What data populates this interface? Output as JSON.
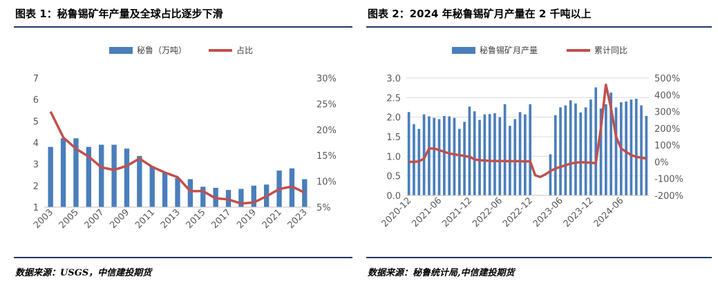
{
  "colors": {
    "bar": "#4a7ebb",
    "line": "#c0504d",
    "rule": "#1f3864",
    "axis_text": "#595959",
    "grid": "#d9d9d9"
  },
  "left": {
    "title": "图表 1：秘鲁锡矿年产量及全球占比逐步下滑",
    "source": "数据来源：USGS，中信建投期货",
    "chart_data": {
      "type": "bar+line",
      "legend_position": "top",
      "series": [
        {
          "name": "秘鲁（万吨）",
          "kind": "bar",
          "axis": "left",
          "values": [
            3.8,
            4.2,
            4.2,
            3.8,
            3.9,
            3.9,
            3.72,
            3.38,
            2.9,
            2.6,
            2.35,
            2.3,
            1.95,
            1.9,
            1.8,
            1.85,
            2.0,
            2.05,
            2.7,
            2.8,
            2.3
          ]
        },
        {
          "name": "占比",
          "kind": "line",
          "axis": "right",
          "values": [
            23.5,
            18.5,
            16.3,
            14.8,
            12.7,
            12.2,
            13.0,
            14.4,
            12.8,
            11.7,
            10.8,
            8.1,
            8.1,
            6.7,
            6.5,
            5.7,
            5.9,
            7.1,
            8.5,
            9.0,
            7.8
          ]
        }
      ],
      "categories": [
        "2003",
        "2004",
        "2005",
        "2006",
        "2007",
        "2008",
        "2009",
        "2010",
        "2011",
        "2012",
        "2013",
        "2014",
        "2015",
        "2016",
        "2017",
        "2018",
        "2019",
        "2020",
        "2021",
        "2022",
        "2023"
      ],
      "x_tick_labels": [
        "2003",
        "2005",
        "2007",
        "2009",
        "2011",
        "2013",
        "2015",
        "2017",
        "2019",
        "2021",
        "2023"
      ],
      "y_left": {
        "min": 1,
        "max": 7,
        "ticks": [
          "1",
          "2",
          "3",
          "4",
          "5",
          "6",
          "7"
        ]
      },
      "y_right": {
        "min": 5,
        "max": 30,
        "ticks": [
          "5%",
          "10%",
          "15%",
          "20%",
          "25%",
          "30%"
        ]
      }
    }
  },
  "right": {
    "title": "图表 2：2024 年秘鲁锡矿月产量在 2 千吨以上",
    "source": "数据来源：秘鲁统计局,中信建投期货",
    "chart_data": {
      "type": "bar+line",
      "legend_position": "top",
      "series": [
        {
          "name": "秘鲁锡矿月产量",
          "kind": "bar",
          "axis": "left",
          "values": [
            2.13,
            1.82,
            1.7,
            2.07,
            2.02,
            1.98,
            1.95,
            2.03,
            2.02,
            1.98,
            1.7,
            1.88,
            2.27,
            2.15,
            1.93,
            2.07,
            2.08,
            2.1,
            2.0,
            2.33,
            1.78,
            1.95,
            2.13,
            2.07,
            2.33,
            0,
            0,
            0,
            1.05,
            2.05,
            2.25,
            2.3,
            2.43,
            2.35,
            2.12,
            2.25,
            2.45,
            2.76,
            2.22,
            2.33,
            2.63,
            2.25,
            2.38,
            2.4,
            2.45,
            2.47,
            2.3,
            2.03
          ]
        },
        {
          "name": "累计同比",
          "kind": "line",
          "axis": "right",
          "values": [
            0,
            0,
            3,
            20,
            80,
            80,
            70,
            60,
            50,
            45,
            40,
            35,
            30,
            15,
            10,
            8,
            6,
            5,
            5,
            5,
            4,
            5,
            4,
            3,
            3,
            -80,
            -90,
            -75,
            -55,
            -40,
            -30,
            -20,
            -10,
            -5,
            -2,
            -3,
            -5,
            -8,
            200,
            460,
            320,
            150,
            80,
            60,
            40,
            30,
            25,
            20
          ]
        }
      ],
      "x_tick_labels": [
        "2020-12",
        "2021-06",
        "2021-12",
        "2022-06",
        "2022-12",
        "2023-06",
        "2023-12",
        "2024-06"
      ],
      "y_left": {
        "min": 0,
        "max": 3.0,
        "ticks": [
          "0.0",
          "0.5",
          "1.0",
          "1.5",
          "2.0",
          "2.5",
          "3.0"
        ]
      },
      "y_right": {
        "min": -200,
        "max": 500,
        "ticks": [
          "-200%",
          "-100%",
          "0%",
          "100%",
          "200%",
          "300%",
          "400%",
          "500%"
        ]
      }
    }
  }
}
